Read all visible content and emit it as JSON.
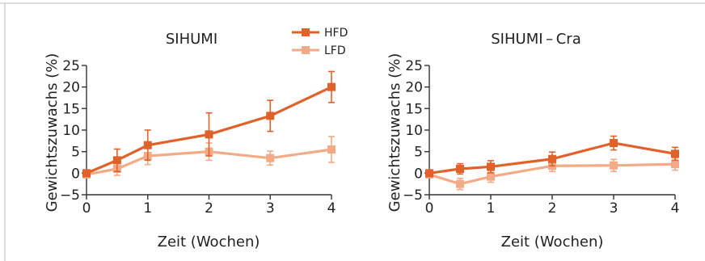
{
  "colors": {
    "HFD": "#e0622a",
    "LFD": "#f2ab86"
  },
  "legend": [
    "HFD",
    "LFD"
  ],
  "chart_data": [
    {
      "type": "line",
      "title": "SIHUMI",
      "xlabel": "Zeit (Wochen)",
      "ylabel": "Gewichtszuwachs (%)",
      "xlim": [
        0,
        4
      ],
      "ylim": [
        -5,
        25
      ],
      "xticks": [
        "0",
        "1",
        "2",
        "3",
        "4"
      ],
      "yticks": [
        "25",
        "20",
        "15",
        "10",
        "5",
        "0",
        "−5"
      ],
      "legend_position": "top-right",
      "series": [
        {
          "name": "HFD",
          "x": [
            0,
            0.5,
            1,
            2,
            3,
            4
          ],
          "y": [
            0,
            3,
            6.5,
            9,
            13.3,
            20
          ],
          "err": [
            0,
            2.6,
            3.5,
            5,
            3.6,
            3.6
          ]
        },
        {
          "name": "LFD",
          "x": [
            0,
            0.5,
            1,
            2,
            3,
            4
          ],
          "y": [
            -0.3,
            1,
            4,
            5,
            3.5,
            5.5
          ],
          "err": [
            0.5,
            1.5,
            2,
            2,
            1.6,
            3
          ]
        }
      ]
    },
    {
      "type": "line",
      "title": "SIHUMI – Cra",
      "xlabel": "Zeit (Wochen)",
      "ylabel": "Gewichtszuwachs (%)",
      "xlim": [
        0,
        4
      ],
      "ylim": [
        -5,
        25
      ],
      "xticks": [
        "0",
        "1",
        "2",
        "3",
        "4"
      ],
      "yticks": [
        "25",
        "20",
        "15",
        "10",
        "5",
        "0",
        "−5"
      ],
      "series": [
        {
          "name": "HFD",
          "x": [
            0,
            0.5,
            1,
            2,
            3,
            4
          ],
          "y": [
            0,
            1,
            1.5,
            3.3,
            7,
            4.5
          ],
          "err": [
            0,
            1.2,
            1.4,
            1.6,
            1.6,
            1.5
          ]
        },
        {
          "name": "LFD",
          "x": [
            0,
            0.5,
            1,
            2,
            3,
            4
          ],
          "y": [
            -0.3,
            -2.5,
            -0.8,
            1.7,
            1.8,
            2.1
          ],
          "err": [
            0.3,
            1.3,
            1.3,
            1.3,
            1.4,
            1.4
          ]
        }
      ]
    }
  ]
}
